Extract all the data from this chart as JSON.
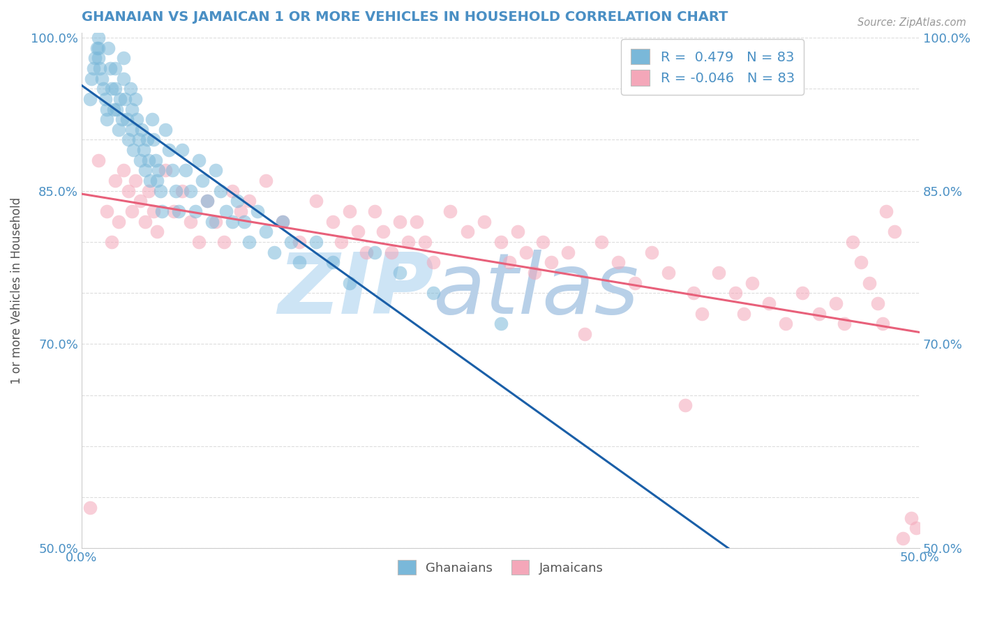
{
  "title": "GHANAIAN VS JAMAICAN 1 OR MORE VEHICLES IN HOUSEHOLD CORRELATION CHART",
  "source_text": "Source: ZipAtlas.com",
  "ylabel": "1 or more Vehicles in Household",
  "xlim": [
    0.0,
    0.5
  ],
  "ylim": [
    0.5,
    1.005
  ],
  "xtick_positions": [
    0.0,
    0.1,
    0.2,
    0.3,
    0.4,
    0.5
  ],
  "xticklabels": [
    "0.0%",
    "",
    "",
    "",
    "",
    "50.0%"
  ],
  "ytick_positions": [
    0.5,
    0.55,
    0.6,
    0.65,
    0.7,
    0.75,
    0.8,
    0.85,
    0.9,
    0.95,
    1.0
  ],
  "yticklabels": [
    "50.0%",
    "",
    "",
    "",
    "70.0%",
    "",
    "",
    "85.0%",
    "",
    "",
    "100.0%"
  ],
  "ghanaian_color": "#7ab8d9",
  "jamaican_color": "#f4a7b9",
  "trendline_ghanaian_color": "#1a5fa8",
  "trendline_jamaican_color": "#e8607a",
  "watermark_zip": "ZIP",
  "watermark_atlas": "atlas",
  "watermark_color_zip": "#c8dff0",
  "watermark_color_atlas": "#b0c8e8",
  "R_ghanaian": 0.479,
  "R_jamaican": -0.046,
  "N": 83,
  "background_color": "#ffffff",
  "grid_color": "#dddddd",
  "title_color": "#4a8fc4",
  "axis_label_color": "#555555",
  "tick_color": "#4a90c4",
  "legend_text_color": "#4a90c4",
  "bottom_legend_color": "#555555",
  "ghanaian_x": [
    0.005,
    0.006,
    0.007,
    0.008,
    0.009,
    0.01,
    0.01,
    0.01,
    0.011,
    0.012,
    0.013,
    0.014,
    0.015,
    0.015,
    0.016,
    0.017,
    0.018,
    0.019,
    0.02,
    0.02,
    0.021,
    0.022,
    0.023,
    0.024,
    0.025,
    0.025,
    0.026,
    0.027,
    0.028,
    0.029,
    0.03,
    0.03,
    0.031,
    0.032,
    0.033,
    0.034,
    0.035,
    0.036,
    0.037,
    0.038,
    0.039,
    0.04,
    0.041,
    0.042,
    0.043,
    0.044,
    0.045,
    0.046,
    0.047,
    0.048,
    0.05,
    0.052,
    0.054,
    0.056,
    0.058,
    0.06,
    0.062,
    0.065,
    0.068,
    0.07,
    0.072,
    0.075,
    0.078,
    0.08,
    0.083,
    0.086,
    0.09,
    0.093,
    0.097,
    0.1,
    0.105,
    0.11,
    0.115,
    0.12,
    0.125,
    0.13,
    0.14,
    0.15,
    0.16,
    0.175,
    0.19,
    0.21,
    0.25
  ],
  "ghanaian_y": [
    0.94,
    0.96,
    0.97,
    0.98,
    0.99,
    1.0,
    0.99,
    0.98,
    0.97,
    0.96,
    0.95,
    0.94,
    0.93,
    0.92,
    0.99,
    0.97,
    0.95,
    0.93,
    0.97,
    0.95,
    0.93,
    0.91,
    0.94,
    0.92,
    0.98,
    0.96,
    0.94,
    0.92,
    0.9,
    0.95,
    0.93,
    0.91,
    0.89,
    0.94,
    0.92,
    0.9,
    0.88,
    0.91,
    0.89,
    0.87,
    0.9,
    0.88,
    0.86,
    0.92,
    0.9,
    0.88,
    0.86,
    0.87,
    0.85,
    0.83,
    0.91,
    0.89,
    0.87,
    0.85,
    0.83,
    0.89,
    0.87,
    0.85,
    0.83,
    0.88,
    0.86,
    0.84,
    0.82,
    0.87,
    0.85,
    0.83,
    0.82,
    0.84,
    0.82,
    0.8,
    0.83,
    0.81,
    0.79,
    0.82,
    0.8,
    0.78,
    0.8,
    0.78,
    0.76,
    0.79,
    0.77,
    0.75,
    0.72
  ],
  "jamaican_x": [
    0.005,
    0.01,
    0.015,
    0.018,
    0.02,
    0.022,
    0.025,
    0.028,
    0.03,
    0.032,
    0.035,
    0.038,
    0.04,
    0.043,
    0.045,
    0.05,
    0.055,
    0.06,
    0.065,
    0.07,
    0.075,
    0.08,
    0.085,
    0.09,
    0.095,
    0.1,
    0.11,
    0.12,
    0.13,
    0.14,
    0.15,
    0.155,
    0.16,
    0.165,
    0.17,
    0.175,
    0.18,
    0.185,
    0.19,
    0.195,
    0.2,
    0.205,
    0.21,
    0.22,
    0.23,
    0.24,
    0.25,
    0.255,
    0.26,
    0.265,
    0.27,
    0.275,
    0.28,
    0.29,
    0.3,
    0.31,
    0.32,
    0.33,
    0.34,
    0.35,
    0.36,
    0.365,
    0.37,
    0.38,
    0.39,
    0.395,
    0.4,
    0.41,
    0.42,
    0.43,
    0.44,
    0.45,
    0.455,
    0.46,
    0.465,
    0.47,
    0.475,
    0.478,
    0.48,
    0.485,
    0.49,
    0.495,
    0.498
  ],
  "jamaican_y": [
    0.54,
    0.88,
    0.83,
    0.8,
    0.86,
    0.82,
    0.87,
    0.85,
    0.83,
    0.86,
    0.84,
    0.82,
    0.85,
    0.83,
    0.81,
    0.87,
    0.83,
    0.85,
    0.82,
    0.8,
    0.84,
    0.82,
    0.8,
    0.85,
    0.83,
    0.84,
    0.86,
    0.82,
    0.8,
    0.84,
    0.82,
    0.8,
    0.83,
    0.81,
    0.79,
    0.83,
    0.81,
    0.79,
    0.82,
    0.8,
    0.82,
    0.8,
    0.78,
    0.83,
    0.81,
    0.82,
    0.8,
    0.78,
    0.81,
    0.79,
    0.77,
    0.8,
    0.78,
    0.79,
    0.71,
    0.8,
    0.78,
    0.76,
    0.79,
    0.77,
    0.64,
    0.75,
    0.73,
    0.77,
    0.75,
    0.73,
    0.76,
    0.74,
    0.72,
    0.75,
    0.73,
    0.74,
    0.72,
    0.8,
    0.78,
    0.76,
    0.74,
    0.72,
    0.83,
    0.81,
    0.51,
    0.53,
    0.52
  ]
}
